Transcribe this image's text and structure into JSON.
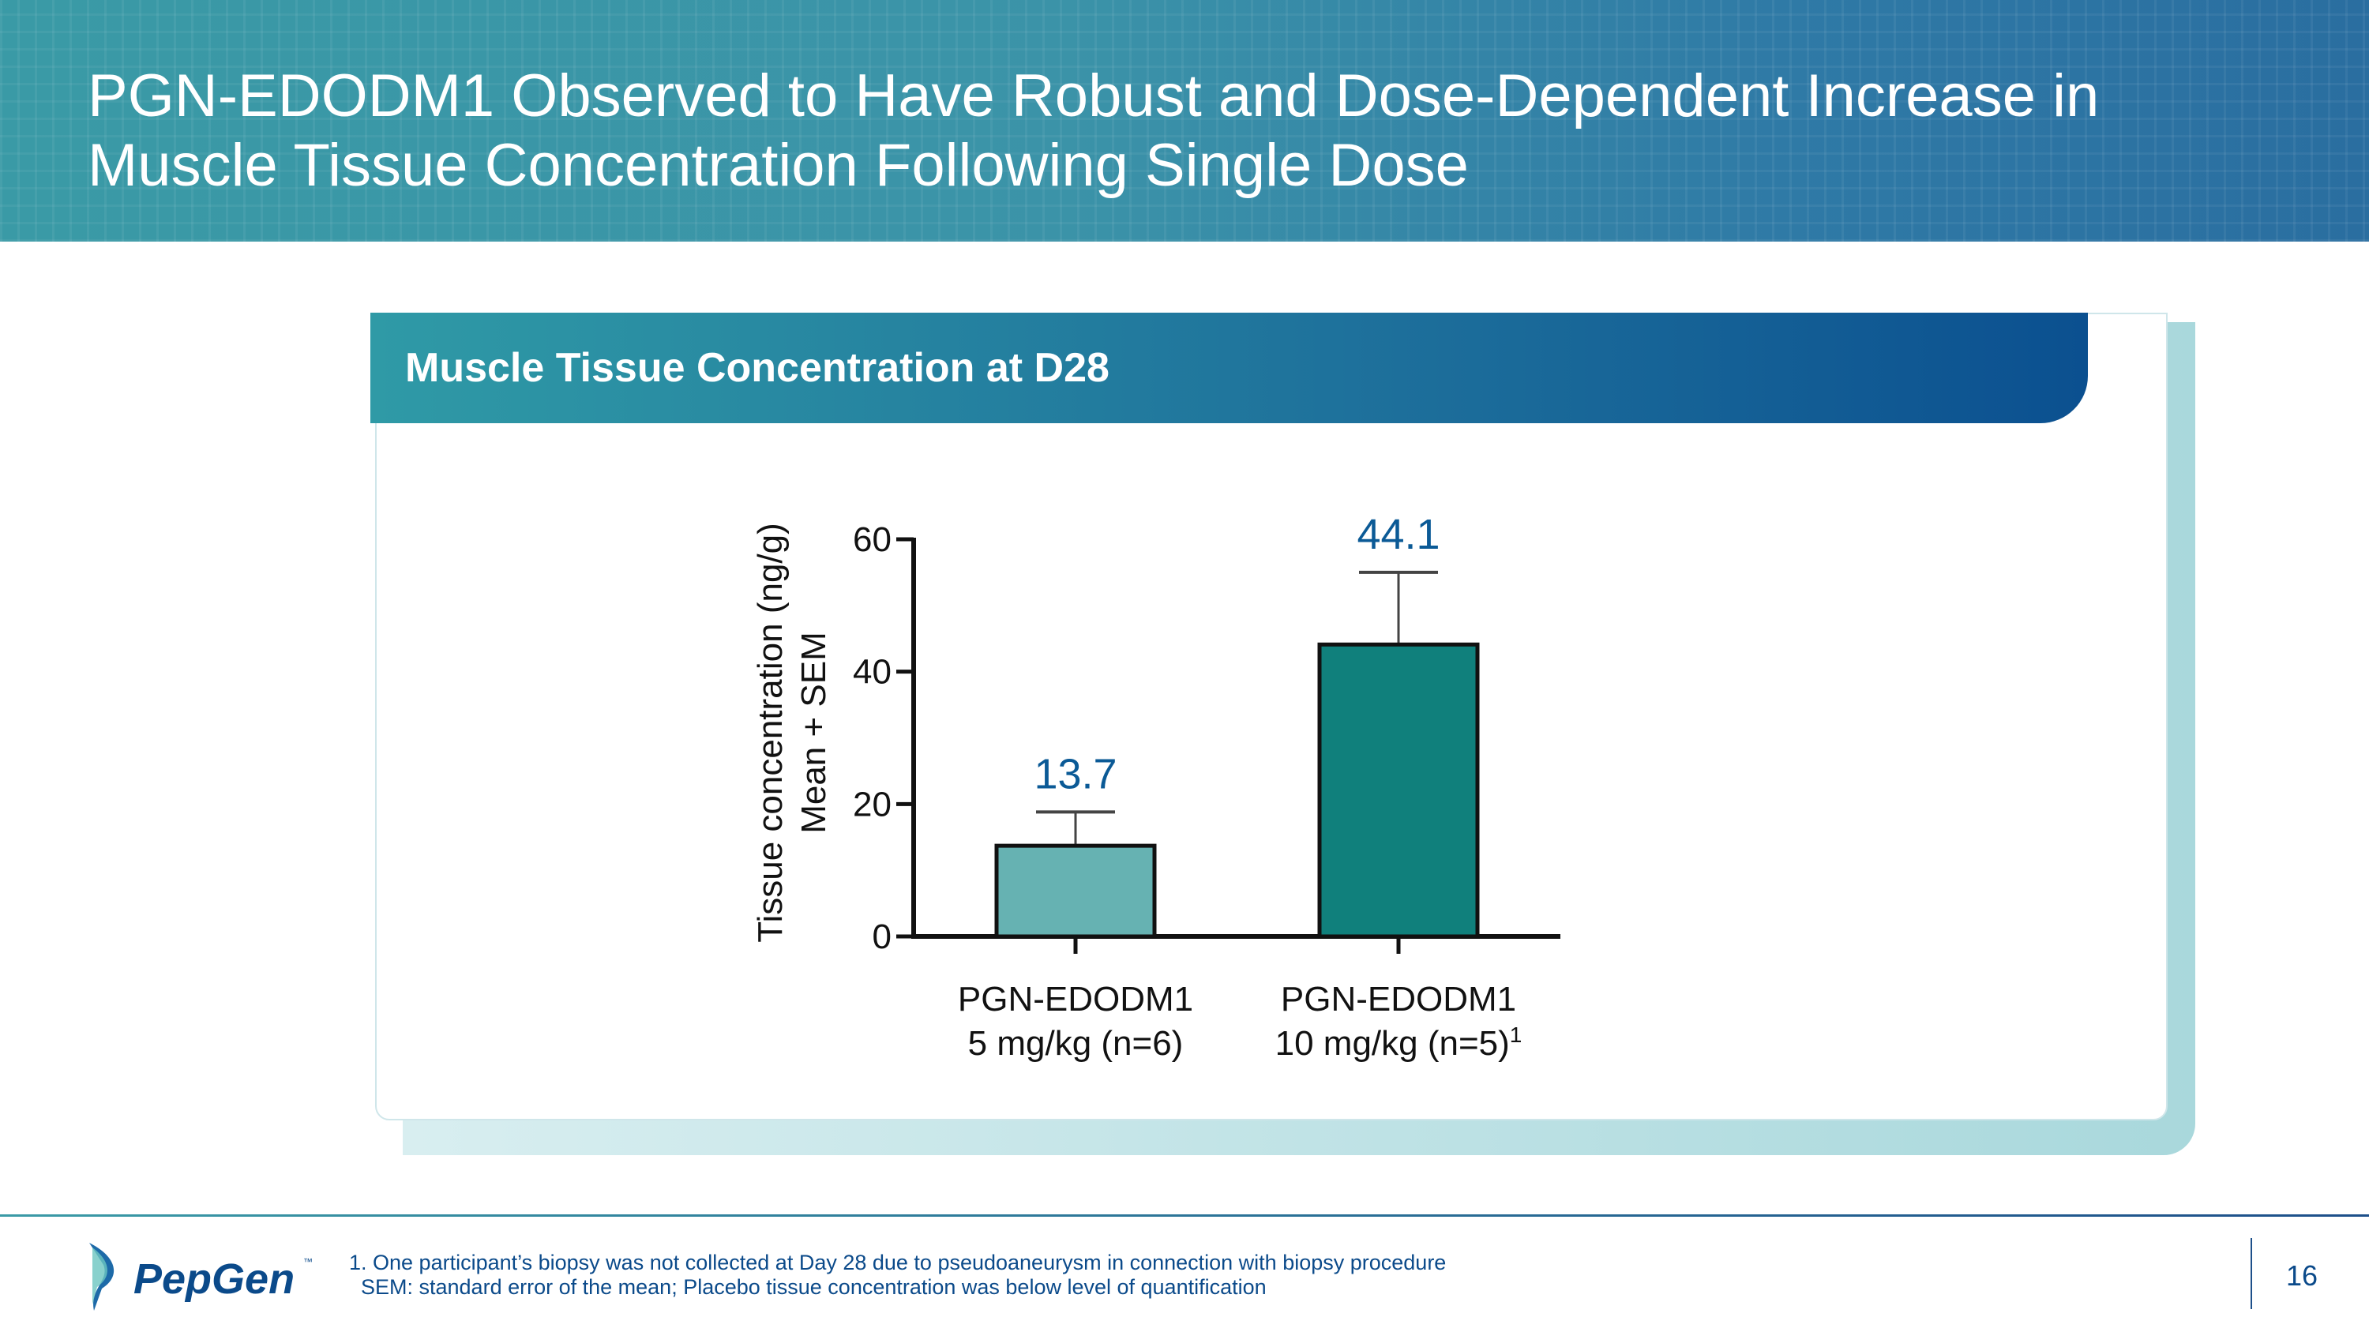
{
  "header": {
    "title_line1": "PGN-EDODM1 Observed to Have Robust and Dose-Dependent Increase in",
    "title_line2": "Muscle Tissue Concentration Following Single Dose"
  },
  "card": {
    "title": "Muscle Tissue Concentration at D28"
  },
  "chart_data": {
    "type": "bar",
    "ylabel_line1": "Tissue concentration (ng/g)",
    "ylabel_line2": "Mean + SEM",
    "ylim": [
      0,
      60
    ],
    "yticks": [
      "0",
      "20",
      "40",
      "60"
    ],
    "categories": [
      {
        "line1": "PGN-EDODM1",
        "line2": "5 mg/kg (n=6)",
        "sup": ""
      },
      {
        "line1": "PGN-EDODM1",
        "line2": "10 mg/kg (n=5)",
        "sup": "1"
      }
    ],
    "values": [
      13.7,
      44.1
    ],
    "error_upper": [
      18.8,
      55.0
    ],
    "data_labels": [
      "13.7",
      "44.1"
    ],
    "colors": [
      "#66b2b2",
      "#10807c"
    ],
    "label_color": "#0b5a96",
    "grid": false
  },
  "footer": {
    "logo_text": "PepGen",
    "tm": "™",
    "note1": "1. One participant’s biopsy was not collected at Day 28 due to pseudoaneurysm in connection with biopsy procedure",
    "note2": "SEM: standard error of the mean; Placebo tissue concentration was below level of quantification",
    "page_number": "16"
  }
}
